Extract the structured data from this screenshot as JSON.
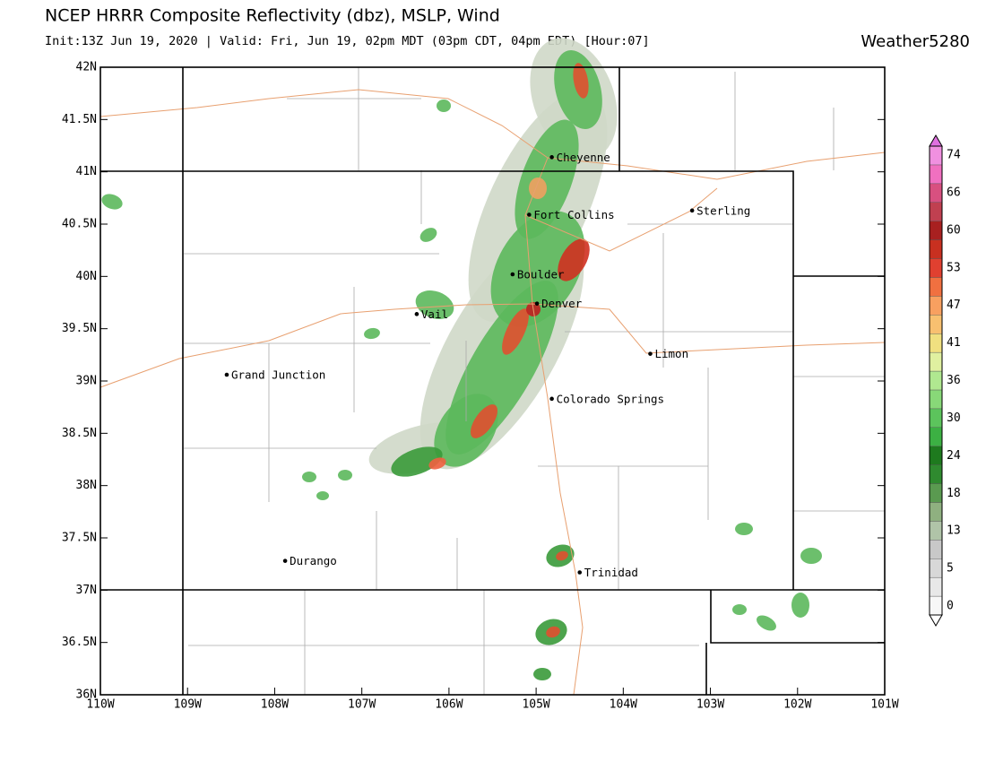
{
  "header": {
    "title": "NCEP HRRR Composite Reflectivity (dbz), MSLP, Wind",
    "subtitle": "Init:13Z Jun 19, 2020 | Valid: Fri, Jun 19, 02pm MDT (03pm CDT, 04pm EDT) [Hour:07]",
    "brand": "Weather5280"
  },
  "map": {
    "lat_labels": [
      "42N",
      "41.5N",
      "41N",
      "40.5N",
      "40N",
      "39.5N",
      "39N",
      "38.5N",
      "38N",
      "37.5N",
      "37N",
      "36.5N",
      "36N"
    ],
    "lon_labels": [
      "110W",
      "109W",
      "108W",
      "107W",
      "106W",
      "105W",
      "104W",
      "103W",
      "102W",
      "101W"
    ],
    "cities": [
      "Cheyenne",
      "Fort Collins",
      "Sterling",
      "Boulder",
      "Denver",
      "Vail",
      "Limon",
      "Grand Junction",
      "Colorado Springs",
      "Durango",
      "Trinidad"
    ]
  },
  "colorbar": {
    "labels": [
      "74",
      "66",
      "60",
      "53",
      "47",
      "41",
      "36",
      "30",
      "24",
      "18",
      "13",
      "5",
      "0"
    ]
  }
}
